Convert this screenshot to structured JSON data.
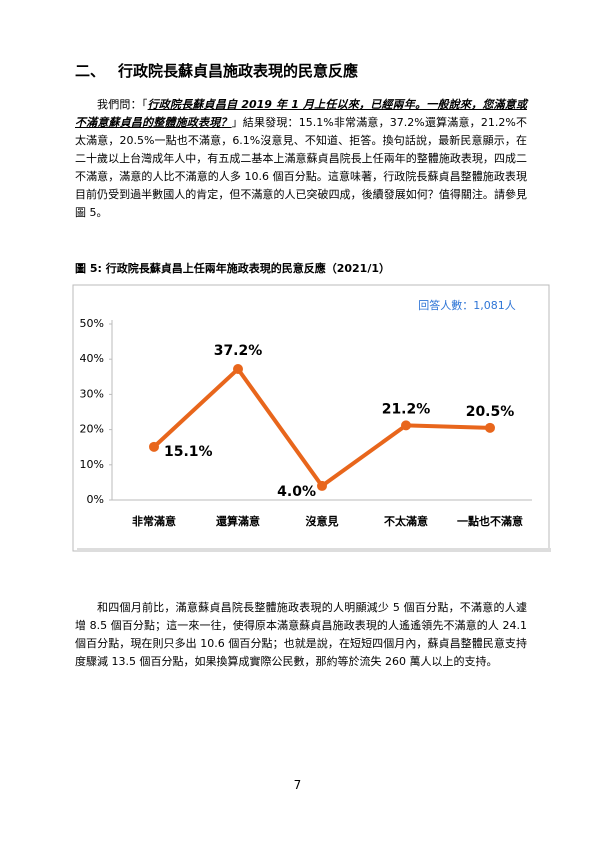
{
  "heading": {
    "number": "二、",
    "title": "行政院長蘇貞昌施政表現的民意反應"
  },
  "paragraph_1": {
    "lead": "我們問：「",
    "question": "行政院長蘇貞昌自 2019 年 1 月上任以來，已經兩年。一般說來，您滿意或不滿意蘇貞昌的整體施政表現？",
    "body": "」結果發現：15.1%非常滿意，37.2%還算滿意，21.2%不太滿意，20.5%一點也不滿意，6.1%沒意見、不知道、拒答。換句話說，最新民意顯示，在二十歲以上台灣成年人中，有五成二基本上滿意蘇貞昌院長上任兩年的整體施政表現，四成二不滿意，滿意的人比不滿意的人多 10.6 個百分點。這意味著，行政院長蘇貞昌整體施政表現目前仍受到過半數國人的肯定，但不滿意的人已突破四成，後續發展如何？值得關注。請參見圖 5。"
  },
  "figure_caption": "圖 5: 行政院長蘇貞昌上任兩年施政表現的民意反應（2021/1）",
  "chart_data": {
    "type": "line",
    "annotation": "回答人數：1,081人",
    "categories": [
      "非常滿意",
      "還算滿意",
      "沒意見",
      "不太滿意",
      "一點也不滿意"
    ],
    "values": [
      15.1,
      37.2,
      4.0,
      21.2,
      20.5
    ],
    "value_labels": [
      "15.1%",
      "37.2%",
      "4.0%",
      "21.2%",
      "20.5%"
    ],
    "color": "#e8661c",
    "ylim": [
      0,
      50
    ],
    "yticks": [
      {
        "value": 0,
        "label": "0%"
      },
      {
        "value": 10,
        "label": "10%"
      },
      {
        "value": 20,
        "label": "20%"
      },
      {
        "value": 30,
        "label": "30%"
      },
      {
        "value": 40,
        "label": "40%"
      },
      {
        "value": 50,
        "label": "50%"
      }
    ]
  },
  "paragraph_2": "和四個月前比，滿意蘇貞昌院長整體施政表現的人明顯減少 5 個百分點，不滿意的人遽增 8.5 個百分點；這一來一往，使得原本滿意蘇貞昌施政表現的人遙遙領先不滿意的人 24.1 個百分點，現在則只多出 10.6 個百分點；也就是說，在短短四個月內，蘇貞昌整體民意支持度驟減 13.5 個百分點，如果換算成實際公民數，那約等於流失 260 萬人以上的支持。",
  "page_number": "7"
}
